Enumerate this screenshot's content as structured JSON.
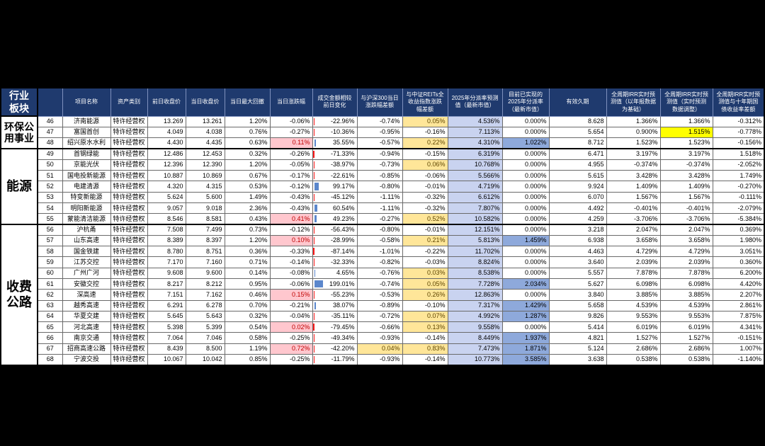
{
  "header": {
    "sector": "行业\n板块",
    "columns": {
      "name": "项目名称",
      "type": "资产类别",
      "prev_close": "前日收盘价",
      "close": "当日收盘价",
      "max_drawdown": "当日最大回撤",
      "change": "当日涨跌幅",
      "turnover_change": "成交金额相较\n前日变化",
      "vs_hs300": "与沪深300当日\n涨跌幅差额",
      "vs_reits": "与中证REITs全\n收益指数涨跌\n幅差额",
      "dist_forecast": "2025年分派率预测\n值（最新市值）",
      "dist_realized": "目前已实现的\n2025年分派率\n（最新市值）",
      "duration": "有效久期",
      "irr_annual": "全周期IRR实时预\n测值（以年报数据\n为基础）",
      "irr_adjusted": "全周期IRR实时预\n测值（实时预测\n数据调整）",
      "irr_spread": "全周期IRR实时预\n测值与十年期国\n债收益率差额"
    }
  },
  "colors": {
    "header_bg": "#1F3A6E",
    "header_text": "#FFFFFF",
    "positive_change_bg": "#FFC7CE",
    "positive_change_text": "#C00000",
    "positive_spread_bg": "#FFE699",
    "positive_spread_text": "#5C4500",
    "forecast_column_bg": "#C9D3F0",
    "realized_bg": "#8EA9DB",
    "bar_negative": "#FF1A1A",
    "bar_positive": "#5B87CC"
  },
  "sectors": [
    {
      "name": "环保公\n用事业",
      "rows": [
        {
          "no": "46",
          "name": "济南能源",
          "type": "特许经营权",
          "prev_close": "13.269",
          "close": "13.261",
          "max_drawdown": "1.20%",
          "change": "-0.06%",
          "turnover_change": "-22.96%",
          "vs_hs300": "-0.74%",
          "vs_reits": "0.05%",
          "dist_forecast": "4.536%",
          "dist_realized": "0.000%",
          "duration": "8.628",
          "irr_annual": "1.366%",
          "irr_adjusted": "1.366%",
          "irr_spread": "-0.312%"
        },
        {
          "no": "47",
          "name": "富国首创",
          "type": "特许经营权",
          "prev_close": "4.049",
          "close": "4.038",
          "max_drawdown": "0.76%",
          "change": "-0.27%",
          "turnover_change": "-10.36%",
          "vs_hs300": "-0.95%",
          "vs_reits": "-0.16%",
          "dist_forecast": "7.113%",
          "dist_realized": "0.000%",
          "duration": "5.654",
          "irr_annual": "0.900%",
          "irr_adjusted": "1.515%",
          "irr_spread": "-0.778%",
          "irr_adjusted_fill": "#FFFF00"
        },
        {
          "no": "48",
          "name": "绍兴原水水利",
          "type": "特许经营权",
          "prev_close": "4.430",
          "close": "4.435",
          "max_drawdown": "0.63%",
          "change": "0.11%",
          "turnover_change": "35.55%",
          "vs_hs300": "-0.57%",
          "vs_reits": "0.22%",
          "dist_forecast": "4.310%",
          "dist_realized": "1.022%",
          "duration": "8.712",
          "irr_annual": "1.523%",
          "irr_adjusted": "1.523%",
          "irr_spread": "-0.156%"
        }
      ]
    },
    {
      "name": "能源",
      "rows": [
        {
          "no": "49",
          "name": "首钢绿能",
          "type": "特许经营权",
          "prev_close": "12.486",
          "close": "12.453",
          "max_drawdown": "0.32%",
          "change": "-0.26%",
          "turnover_change": "-71.33%",
          "vs_hs300": "-0.94%",
          "vs_reits": "-0.15%",
          "dist_forecast": "6.319%",
          "dist_realized": "0.000%",
          "duration": "6.471",
          "irr_annual": "3.197%",
          "irr_adjusted": "3.197%",
          "irr_spread": "1.518%"
        },
        {
          "no": "50",
          "name": "京能光伏",
          "type": "特许经营权",
          "prev_close": "12.396",
          "close": "12.390",
          "max_drawdown": "1.20%",
          "change": "-0.05%",
          "turnover_change": "-38.97%",
          "vs_hs300": "-0.73%",
          "vs_reits": "0.06%",
          "dist_forecast": "10.768%",
          "dist_realized": "0.000%",
          "duration": "4.955",
          "irr_annual": "-0.374%",
          "irr_adjusted": "-0.374%",
          "irr_spread": "-2.052%"
        },
        {
          "no": "51",
          "name": "国电投新能源",
          "type": "特许经营权",
          "prev_close": "10.887",
          "close": "10.869",
          "max_drawdown": "0.67%",
          "change": "-0.17%",
          "turnover_change": "-22.61%",
          "vs_hs300": "-0.85%",
          "vs_reits": "-0.06%",
          "dist_forecast": "5.566%",
          "dist_realized": "0.000%",
          "duration": "5.615",
          "irr_annual": "3.428%",
          "irr_adjusted": "3.428%",
          "irr_spread": "1.749%"
        },
        {
          "no": "52",
          "name": "电建清源",
          "type": "特许经营权",
          "prev_close": "4.320",
          "close": "4.315",
          "max_drawdown": "0.53%",
          "change": "-0.12%",
          "turnover_change": "99.17%",
          "vs_hs300": "-0.80%",
          "vs_reits": "-0.01%",
          "dist_forecast": "4.719%",
          "dist_realized": "0.000%",
          "duration": "9.924",
          "irr_annual": "1.409%",
          "irr_adjusted": "1.409%",
          "irr_spread": "-0.270%"
        },
        {
          "no": "53",
          "name": "特变新能源",
          "type": "特许经营权",
          "prev_close": "5.624",
          "close": "5.600",
          "max_drawdown": "1.49%",
          "change": "-0.43%",
          "turnover_change": "-45.12%",
          "vs_hs300": "-1.11%",
          "vs_reits": "-0.32%",
          "dist_forecast": "6.612%",
          "dist_realized": "0.000%",
          "duration": "6.070",
          "irr_annual": "1.567%",
          "irr_adjusted": "1.567%",
          "irr_spread": "-0.111%"
        },
        {
          "no": "54",
          "name": "明阳新能源",
          "type": "特许经营权",
          "prev_close": "9.057",
          "close": "9.018",
          "max_drawdown": "2.36%",
          "change": "-0.43%",
          "turnover_change": "60.54%",
          "vs_hs300": "-1.11%",
          "vs_reits": "-0.32%",
          "dist_forecast": "7.807%",
          "dist_realized": "0.000%",
          "duration": "4.492",
          "irr_annual": "-0.401%",
          "irr_adjusted": "-0.401%",
          "irr_spread": "-2.079%"
        },
        {
          "no": "55",
          "name": "蒙能清洁能源",
          "type": "特许经营权",
          "prev_close": "8.546",
          "close": "8.581",
          "max_drawdown": "0.43%",
          "change": "0.41%",
          "turnover_change": "49.23%",
          "vs_hs300": "-0.27%",
          "vs_reits": "0.52%",
          "dist_forecast": "10.582%",
          "dist_realized": "0.000%",
          "duration": "4.259",
          "irr_annual": "-3.706%",
          "irr_adjusted": "-3.706%",
          "irr_spread": "-5.384%"
        }
      ]
    },
    {
      "name": "收费\n公路",
      "rows": [
        {
          "no": "56",
          "name": "沪杭甬",
          "type": "特许经营权",
          "prev_close": "7.508",
          "close": "7.499",
          "max_drawdown": "0.73%",
          "change": "-0.12%",
          "turnover_change": "-56.43%",
          "vs_hs300": "-0.80%",
          "vs_reits": "-0.01%",
          "dist_forecast": "12.151%",
          "dist_realized": "0.000%",
          "duration": "3.218",
          "irr_annual": "2.047%",
          "irr_adjusted": "2.047%",
          "irr_spread": "0.369%"
        },
        {
          "no": "57",
          "name": "山东高速",
          "type": "特许经营权",
          "prev_close": "8.389",
          "close": "8.397",
          "max_drawdown": "1.20%",
          "change": "0.10%",
          "turnover_change": "-28.99%",
          "vs_hs300": "-0.58%",
          "vs_reits": "0.21%",
          "dist_forecast": "5.813%",
          "dist_realized": "1.459%",
          "duration": "6.938",
          "irr_annual": "3.658%",
          "irr_adjusted": "3.658%",
          "irr_spread": "1.980%"
        },
        {
          "no": "58",
          "name": "国金铁建",
          "type": "特许经营权",
          "prev_close": "8.780",
          "close": "8.751",
          "max_drawdown": "0.36%",
          "change": "-0.33%",
          "turnover_change": "-87.14%",
          "vs_hs300": "-1.01%",
          "vs_reits": "-0.22%",
          "dist_forecast": "11.702%",
          "dist_realized": "0.000%",
          "duration": "4.463",
          "irr_annual": "4.729%",
          "irr_adjusted": "4.729%",
          "irr_spread": "3.051%"
        },
        {
          "no": "59",
          "name": "江苏交控",
          "type": "特许经营权",
          "prev_close": "7.170",
          "close": "7.160",
          "max_drawdown": "0.71%",
          "change": "-0.14%",
          "turnover_change": "-32.33%",
          "vs_hs300": "-0.82%",
          "vs_reits": "-0.03%",
          "dist_forecast": "8.824%",
          "dist_realized": "0.000%",
          "duration": "3.640",
          "irr_annual": "2.039%",
          "irr_adjusted": "2.039%",
          "irr_spread": "0.360%"
        },
        {
          "no": "60",
          "name": "广州广河",
          "type": "特许经营权",
          "prev_close": "9.608",
          "close": "9.600",
          "max_drawdown": "0.14%",
          "change": "-0.08%",
          "turnover_change": "4.65%",
          "vs_hs300": "-0.76%",
          "vs_reits": "0.03%",
          "dist_forecast": "8.538%",
          "dist_realized": "0.000%",
          "duration": "5.557",
          "irr_annual": "7.878%",
          "irr_adjusted": "7.878%",
          "irr_spread": "6.200%"
        },
        {
          "no": "61",
          "name": "安徽交控",
          "type": "特许经营权",
          "prev_close": "8.217",
          "close": "8.212",
          "max_drawdown": "0.95%",
          "change": "-0.06%",
          "turnover_change": "199.01%",
          "vs_hs300": "-0.74%",
          "vs_reits": "0.05%",
          "dist_forecast": "7.728%",
          "dist_realized": "2.034%",
          "duration": "5.627",
          "irr_annual": "6.098%",
          "irr_adjusted": "6.098%",
          "irr_spread": "4.420%"
        },
        {
          "no": "62",
          "name": "深高速",
          "type": "特许经营权",
          "prev_close": "7.151",
          "close": "7.162",
          "max_drawdown": "0.46%",
          "change": "0.15%",
          "turnover_change": "-55.23%",
          "vs_hs300": "-0.53%",
          "vs_reits": "0.26%",
          "dist_forecast": "12.863%",
          "dist_realized": "0.000%",
          "duration": "3.840",
          "irr_annual": "3.885%",
          "irr_adjusted": "3.885%",
          "irr_spread": "2.207%"
        },
        {
          "no": "63",
          "name": "越秀高速",
          "type": "特许经营权",
          "prev_close": "6.291",
          "close": "6.278",
          "max_drawdown": "0.70%",
          "change": "-0.21%",
          "turnover_change": "38.07%",
          "vs_hs300": "-0.89%",
          "vs_reits": "-0.10%",
          "dist_forecast": "7.317%",
          "dist_realized": "1.429%",
          "duration": "5.658",
          "irr_annual": "4.539%",
          "irr_adjusted": "4.539%",
          "irr_spread": "2.861%"
        },
        {
          "no": "64",
          "name": "华夏交建",
          "type": "特许经营权",
          "prev_close": "5.645",
          "close": "5.643",
          "max_drawdown": "0.32%",
          "change": "-0.04%",
          "turnover_change": "-35.11%",
          "vs_hs300": "-0.72%",
          "vs_reits": "0.07%",
          "dist_forecast": "4.992%",
          "dist_realized": "1.287%",
          "duration": "9.826",
          "irr_annual": "9.553%",
          "irr_adjusted": "9.553%",
          "irr_spread": "7.875%"
        },
        {
          "no": "65",
          "name": "河北高速",
          "type": "特许经营权",
          "prev_close": "5.398",
          "close": "5.399",
          "max_drawdown": "0.54%",
          "change": "0.02%",
          "turnover_change": "-79.45%",
          "vs_hs300": "-0.66%",
          "vs_reits": "0.13%",
          "dist_forecast": "9.558%",
          "dist_realized": "0.000%",
          "duration": "5.414",
          "irr_annual": "6.019%",
          "irr_adjusted": "6.019%",
          "irr_spread": "4.341%"
        },
        {
          "no": "66",
          "name": "南京交通",
          "type": "特许经营权",
          "prev_close": "7.064",
          "close": "7.046",
          "max_drawdown": "0.58%",
          "change": "-0.25%",
          "turnover_change": "-49.34%",
          "vs_hs300": "-0.93%",
          "vs_reits": "-0.14%",
          "dist_forecast": "8.449%",
          "dist_realized": "1.937%",
          "duration": "4.821",
          "irr_annual": "1.527%",
          "irr_adjusted": "1.527%",
          "irr_spread": "-0.151%"
        },
        {
          "no": "67",
          "name": "招商高速公路",
          "type": "特许经营权",
          "prev_close": "8.439",
          "close": "8.500",
          "max_drawdown": "1.19%",
          "change": "0.72%",
          "turnover_change": "-42.20%",
          "vs_hs300": "0.04%",
          "vs_reits": "0.83%",
          "dist_forecast": "7.473%",
          "dist_realized": "1.871%",
          "duration": "5.124",
          "irr_annual": "2.686%",
          "irr_adjusted": "2.686%",
          "irr_spread": "1.007%"
        },
        {
          "no": "68",
          "name": "宁波交投",
          "type": "特许经营权",
          "prev_close": "10.067",
          "close": "10.042",
          "max_drawdown": "0.85%",
          "change": "-0.25%",
          "turnover_change": "-11.79%",
          "vs_hs300": "-0.93%",
          "vs_reits": "-0.14%",
          "dist_forecast": "10.773%",
          "dist_realized": "3.585%",
          "duration": "3.638",
          "irr_annual": "0.538%",
          "irr_adjusted": "0.538%",
          "irr_spread": "-1.140%"
        }
      ]
    }
  ]
}
